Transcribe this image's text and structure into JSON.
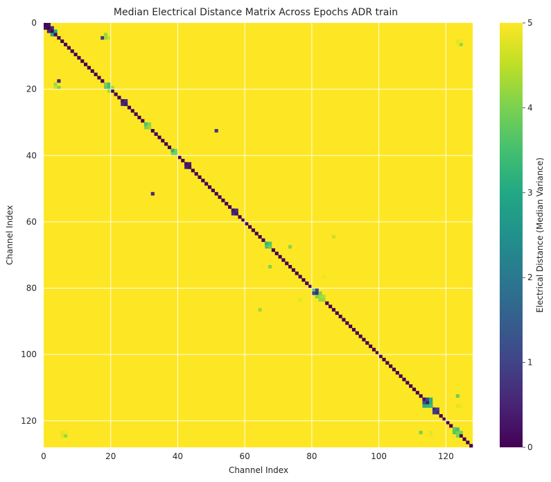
{
  "chart_data": {
    "type": "heatmap",
    "title": "Median Electrical Distance Matrix Across Epochs ADR train",
    "xlabel": "Channel Index",
    "ylabel": "Channel Index",
    "colorbar_label": "Electrical Distance (Median Variance)",
    "n_channels": 128,
    "xlim": [
      0,
      128
    ],
    "ylim": [
      128,
      0
    ],
    "x_ticks": [
      0,
      20,
      40,
      60,
      80,
      100,
      120
    ],
    "y_ticks": [
      0,
      20,
      40,
      60,
      80,
      100,
      120
    ],
    "colorbar_range": [
      0,
      5
    ],
    "colorbar_ticks": [
      0,
      1,
      2,
      3,
      4,
      5
    ],
    "colormap": "viridis",
    "grid": true,
    "default_value": 5,
    "diagonal_value": 0,
    "cells": [
      [
        1,
        0,
        0.2
      ],
      [
        0,
        1,
        0.2
      ],
      [
        2,
        1,
        0.5
      ],
      [
        1,
        2,
        0.5
      ],
      [
        2,
        3,
        3.0
      ],
      [
        3,
        2,
        3.0
      ],
      [
        3,
        3,
        0.2
      ],
      [
        17,
        4,
        0.8
      ],
      [
        18,
        3,
        4.2
      ],
      [
        19,
        4,
        4.6
      ],
      [
        18,
        4,
        4.3
      ],
      [
        4,
        17,
        0.5
      ],
      [
        3,
        18,
        4.3
      ],
      [
        4,
        19,
        4.0
      ],
      [
        3,
        19,
        4.6
      ],
      [
        18,
        18,
        4.0
      ],
      [
        19,
        19,
        3.5
      ],
      [
        18,
        19,
        3.8
      ],
      [
        19,
        18,
        3.5
      ],
      [
        20,
        19,
        4.3
      ],
      [
        19,
        20,
        4.3
      ],
      [
        23,
        23,
        0.3
      ],
      [
        24,
        24,
        0.3
      ],
      [
        23,
        24,
        0.6
      ],
      [
        24,
        23,
        0.6
      ],
      [
        30,
        30,
        3.6
      ],
      [
        31,
        31,
        4.3
      ],
      [
        30,
        31,
        4.0
      ],
      [
        31,
        30,
        4.1
      ],
      [
        51,
        32,
        0.8
      ],
      [
        32,
        51,
        0.6
      ],
      [
        38,
        38,
        3.2
      ],
      [
        39,
        39,
        4.0
      ],
      [
        38,
        39,
        4.0
      ],
      [
        39,
        38,
        4.0
      ],
      [
        42,
        42,
        0.2
      ],
      [
        43,
        43,
        0.2
      ],
      [
        42,
        43,
        0.4
      ],
      [
        43,
        42,
        0.4
      ],
      [
        56,
        56,
        0.3
      ],
      [
        57,
        57,
        0.3
      ],
      [
        56,
        57,
        0.6
      ],
      [
        57,
        56,
        0.6
      ],
      [
        66,
        66,
        3.3
      ],
      [
        67,
        67,
        3.9
      ],
      [
        66,
        67,
        3.6
      ],
      [
        67,
        66,
        3.6
      ],
      [
        73,
        67,
        4.1
      ],
      [
        67,
        73,
        4.1
      ],
      [
        86,
        64,
        4.6
      ],
      [
        64,
        86,
        4.3
      ],
      [
        83,
        76,
        4.9
      ],
      [
        76,
        83,
        4.8
      ],
      [
        80,
        80,
        3.8
      ],
      [
        81,
        81,
        0.6
      ],
      [
        82,
        82,
        4.3
      ],
      [
        80,
        81,
        1.0
      ],
      [
        81,
        80,
        1.0
      ],
      [
        82,
        81,
        4.0
      ],
      [
        81,
        82,
        4.0
      ],
      [
        83,
        82,
        4.4
      ],
      [
        82,
        83,
        4.2
      ],
      [
        83,
        83,
        4.2
      ],
      [
        113,
        113,
        0.3
      ],
      [
        114,
        114,
        0.3
      ],
      [
        113,
        114,
        1.2
      ],
      [
        114,
        113,
        1.2
      ],
      [
        115,
        114,
        3.1
      ],
      [
        114,
        115,
        3.2
      ],
      [
        113,
        115,
        3.1
      ],
      [
        115,
        113,
        3.1
      ],
      [
        115,
        115,
        3.4
      ],
      [
        116,
        116,
        0.6
      ],
      [
        117,
        117,
        0.6
      ],
      [
        116,
        117,
        0.9
      ],
      [
        117,
        116,
        0.9
      ],
      [
        123,
        112,
        3.9
      ],
      [
        112,
        123,
        4.0
      ],
      [
        115,
        123,
        4.8
      ],
      [
        123,
        115,
        4.8
      ],
      [
        124,
        115,
        4.9
      ],
      [
        115,
        124,
        4.9
      ],
      [
        122,
        122,
        3.7
      ],
      [
        123,
        123,
        4.0
      ],
      [
        122,
        123,
        3.7
      ],
      [
        123,
        122,
        3.5
      ],
      [
        124,
        123,
        4.0
      ],
      [
        123,
        124,
        4.0
      ],
      [
        6,
        124,
        4.2
      ],
      [
        124,
        6,
        4.2
      ],
      [
        5,
        123,
        4.8
      ],
      [
        123,
        5,
        4.8
      ],
      [
        6,
        123,
        4.9
      ],
      [
        123,
        6,
        4.9
      ],
      [
        124,
        5,
        4.9
      ],
      [
        5,
        124,
        4.8
      ]
    ]
  }
}
